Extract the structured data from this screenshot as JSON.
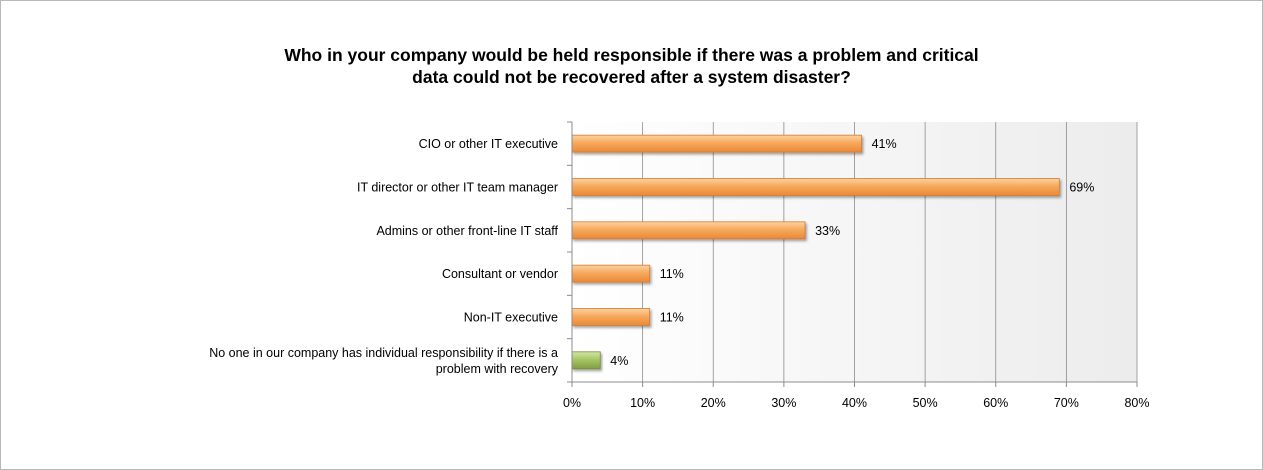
{
  "chart_data": {
    "type": "bar",
    "orientation": "horizontal",
    "title": "Who in your company would be held responsible if there was a problem and critical data could not be recovered after a system disaster?",
    "title_lines": [
      "Who in your company would be held responsible if there was a problem and critical",
      "data could not be recovered after a system disaster?"
    ],
    "categories": [
      [
        "CIO or other IT executive"
      ],
      [
        "IT director or other IT team manager"
      ],
      [
        "Admins or other front-line IT staff"
      ],
      [
        "Consultant or vendor"
      ],
      [
        "Non-IT executive"
      ],
      [
        "No one in our company has individual responsibility if there is a",
        "problem with recovery"
      ]
    ],
    "values": [
      41,
      69,
      33,
      11,
      11,
      4
    ],
    "value_labels": [
      "41%",
      "69%",
      "33%",
      "11%",
      "11%",
      "4%"
    ],
    "bar_colors": [
      "#f5a55a",
      "#f5a55a",
      "#f5a55a",
      "#f5a55a",
      "#f5a55a",
      "#9bbb59"
    ],
    "xlim": [
      0,
      80
    ],
    "xticks": [
      0,
      10,
      20,
      30,
      40,
      50,
      60,
      70,
      80
    ],
    "xtick_labels": [
      "0%",
      "10%",
      "20%",
      "30%",
      "40%",
      "50%",
      "60%",
      "70%",
      "80%"
    ],
    "grid": true,
    "legend": "none"
  }
}
